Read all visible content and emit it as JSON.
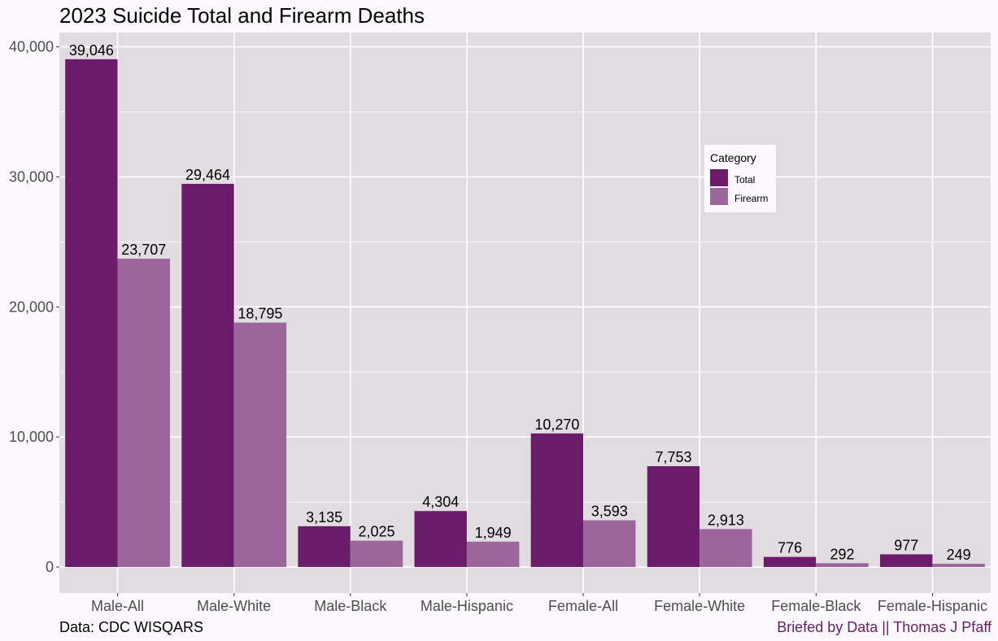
{
  "chart_data": {
    "type": "bar",
    "title": "2023 Suicide Total and Firearm Deaths",
    "categories": [
      "Male-All",
      "Male-White",
      "Male-Black",
      "Male-Hispanic",
      "Female-All",
      "Female-White",
      "Female-Black",
      "Female-Hispanic"
    ],
    "series": [
      {
        "name": "Total",
        "color": "#6a1b69",
        "values": [
          39046,
          29464,
          3135,
          4304,
          10270,
          7753,
          776,
          977
        ],
        "labels": [
          "39,046",
          "29,464",
          "3,135",
          "4,304",
          "10,270",
          "7,753",
          "776",
          "977"
        ]
      },
      {
        "name": "Firearm",
        "color": "#9c659c",
        "values": [
          23707,
          18795,
          2025,
          1949,
          3593,
          2913,
          292,
          249
        ],
        "labels": [
          "23,707",
          "18,795",
          "2,025",
          "1,949",
          "3,593",
          "2,913",
          "292",
          "249"
        ]
      }
    ],
    "y_ticks": [
      0,
      10000,
      20000,
      30000,
      40000
    ],
    "y_tick_labels": [
      "0",
      "10,000",
      "20,000",
      "30,000",
      "40,000"
    ],
    "ylim": [
      -2000,
      41100
    ],
    "grid": true,
    "legend": {
      "title": "Category",
      "position": "top-right-inside"
    },
    "panel_color": "#e0dce0",
    "grid_color": "#ffffff"
  },
  "caption_left": "Data: CDC WISQARS",
  "caption_right": "Briefed by Data || Thomas J Pfaff",
  "caption_right_color": "#6a1b69"
}
